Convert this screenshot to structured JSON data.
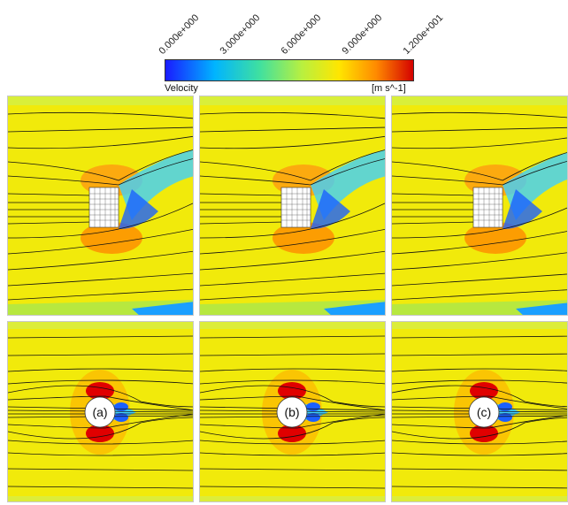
{
  "colorbar": {
    "ticks": [
      "0.000e+000",
      "3.000e+000",
      "6.000e+000",
      "9.000e+000",
      "1.200e+001"
    ],
    "title": "Velocity",
    "units": "[m s^-1]",
    "colors": [
      "#1a1aff",
      "#00b4ff",
      "#3fe0a0",
      "#b8f040",
      "#ffe600",
      "#ff8a00",
      "#d40000"
    ]
  },
  "panels": {
    "labels": [
      "(a)",
      "(b)",
      "(c)"
    ],
    "background_color": "#f1ea0b",
    "row_top_obstacle": "square",
    "row_bottom_obstacle": "circle"
  }
}
